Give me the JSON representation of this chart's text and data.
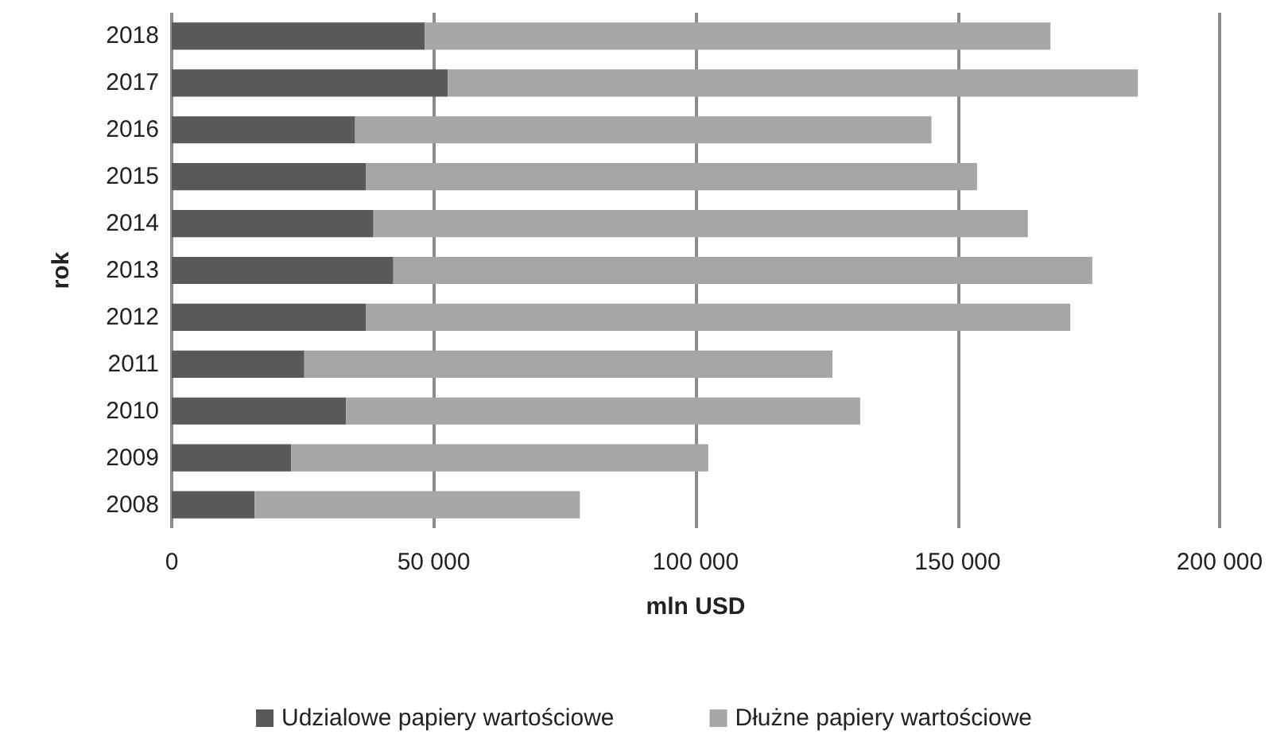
{
  "chart_data": {
    "type": "bar",
    "orientation": "horizontal",
    "stacked": true,
    "xlabel": "mln USD",
    "ylabel": "rok",
    "categories": [
      "2018",
      "2017",
      "2016",
      "2015",
      "2014",
      "2013",
      "2012",
      "2011",
      "2010",
      "2009",
      "2008"
    ],
    "series": [
      {
        "name": "Udzialowe papiery wartościowe",
        "color": "#595959",
        "values": [
          48300,
          52700,
          35000,
          37100,
          38500,
          42300,
          37100,
          25300,
          33300,
          22800,
          15800
        ]
      },
      {
        "name": "Dłużne papiery wartościowe",
        "color": "#a6a6a6",
        "values": [
          119400,
          131700,
          110000,
          116600,
          124900,
          133400,
          134400,
          100800,
          98100,
          79600,
          62100
        ]
      }
    ],
    "xlim": [
      0,
      200000
    ],
    "xticks": [
      0,
      {
        "value": 50000,
        "label": "50 000"
      },
      {
        "value": 100000,
        "label": "100 000"
      },
      {
        "value": 150000,
        "label": "150 000"
      },
      {
        "value": 200000,
        "label": "200 000"
      }
    ],
    "grid": "x",
    "legend": "bottom"
  }
}
